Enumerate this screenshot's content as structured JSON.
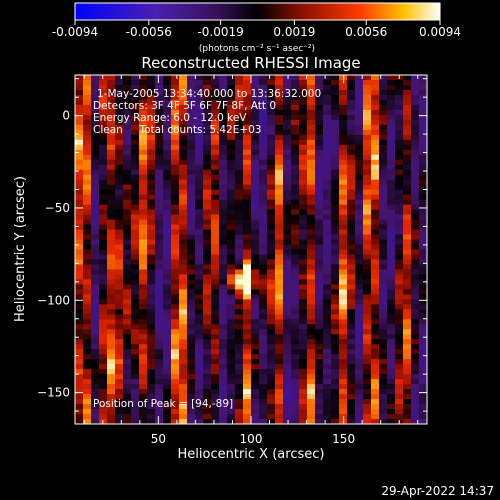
{
  "chart_data": {
    "type": "heatmap",
    "title": "Reconstructed RHESSI Image",
    "xlabel": "Heliocentric X (arcsec)",
    "ylabel": "Heliocentric Y (arcsec)",
    "xlim": [
      5,
      195
    ],
    "ylim": [
      -167,
      22
    ],
    "xticks": [
      50,
      100,
      150
    ],
    "yticks": [
      0,
      -50,
      -100,
      -150
    ],
    "colorbar": {
      "range": [
        -0.0094,
        0.0094
      ],
      "ticks": [
        "-0.0094",
        "-0.0056",
        "-0.0019",
        "0.0019",
        "0.0056",
        "0.0094"
      ],
      "unit": "(photons cm⁻² s⁻¹ asec⁻²)",
      "colors": [
        "#0000ff",
        "#3b1d9e",
        "#000000",
        "#8a0f00",
        "#ff3a00",
        "#ffc000",
        "#ffffff"
      ]
    },
    "annotations": [
      "1-May-2005 13:34:40.000 to 13:36:32.000",
      "Detectors: 3F 4F 5F 6F 7F 8F, Att 0",
      "Energy Range: 6.0 - 12.0 keV",
      "Clean     Total counts: 5.42E+03"
    ],
    "peak_label": "Position of Peak = [94,-89]",
    "peak": [
      94,
      -89
    ],
    "timestamp": "29-Apr-2022 14:37"
  }
}
